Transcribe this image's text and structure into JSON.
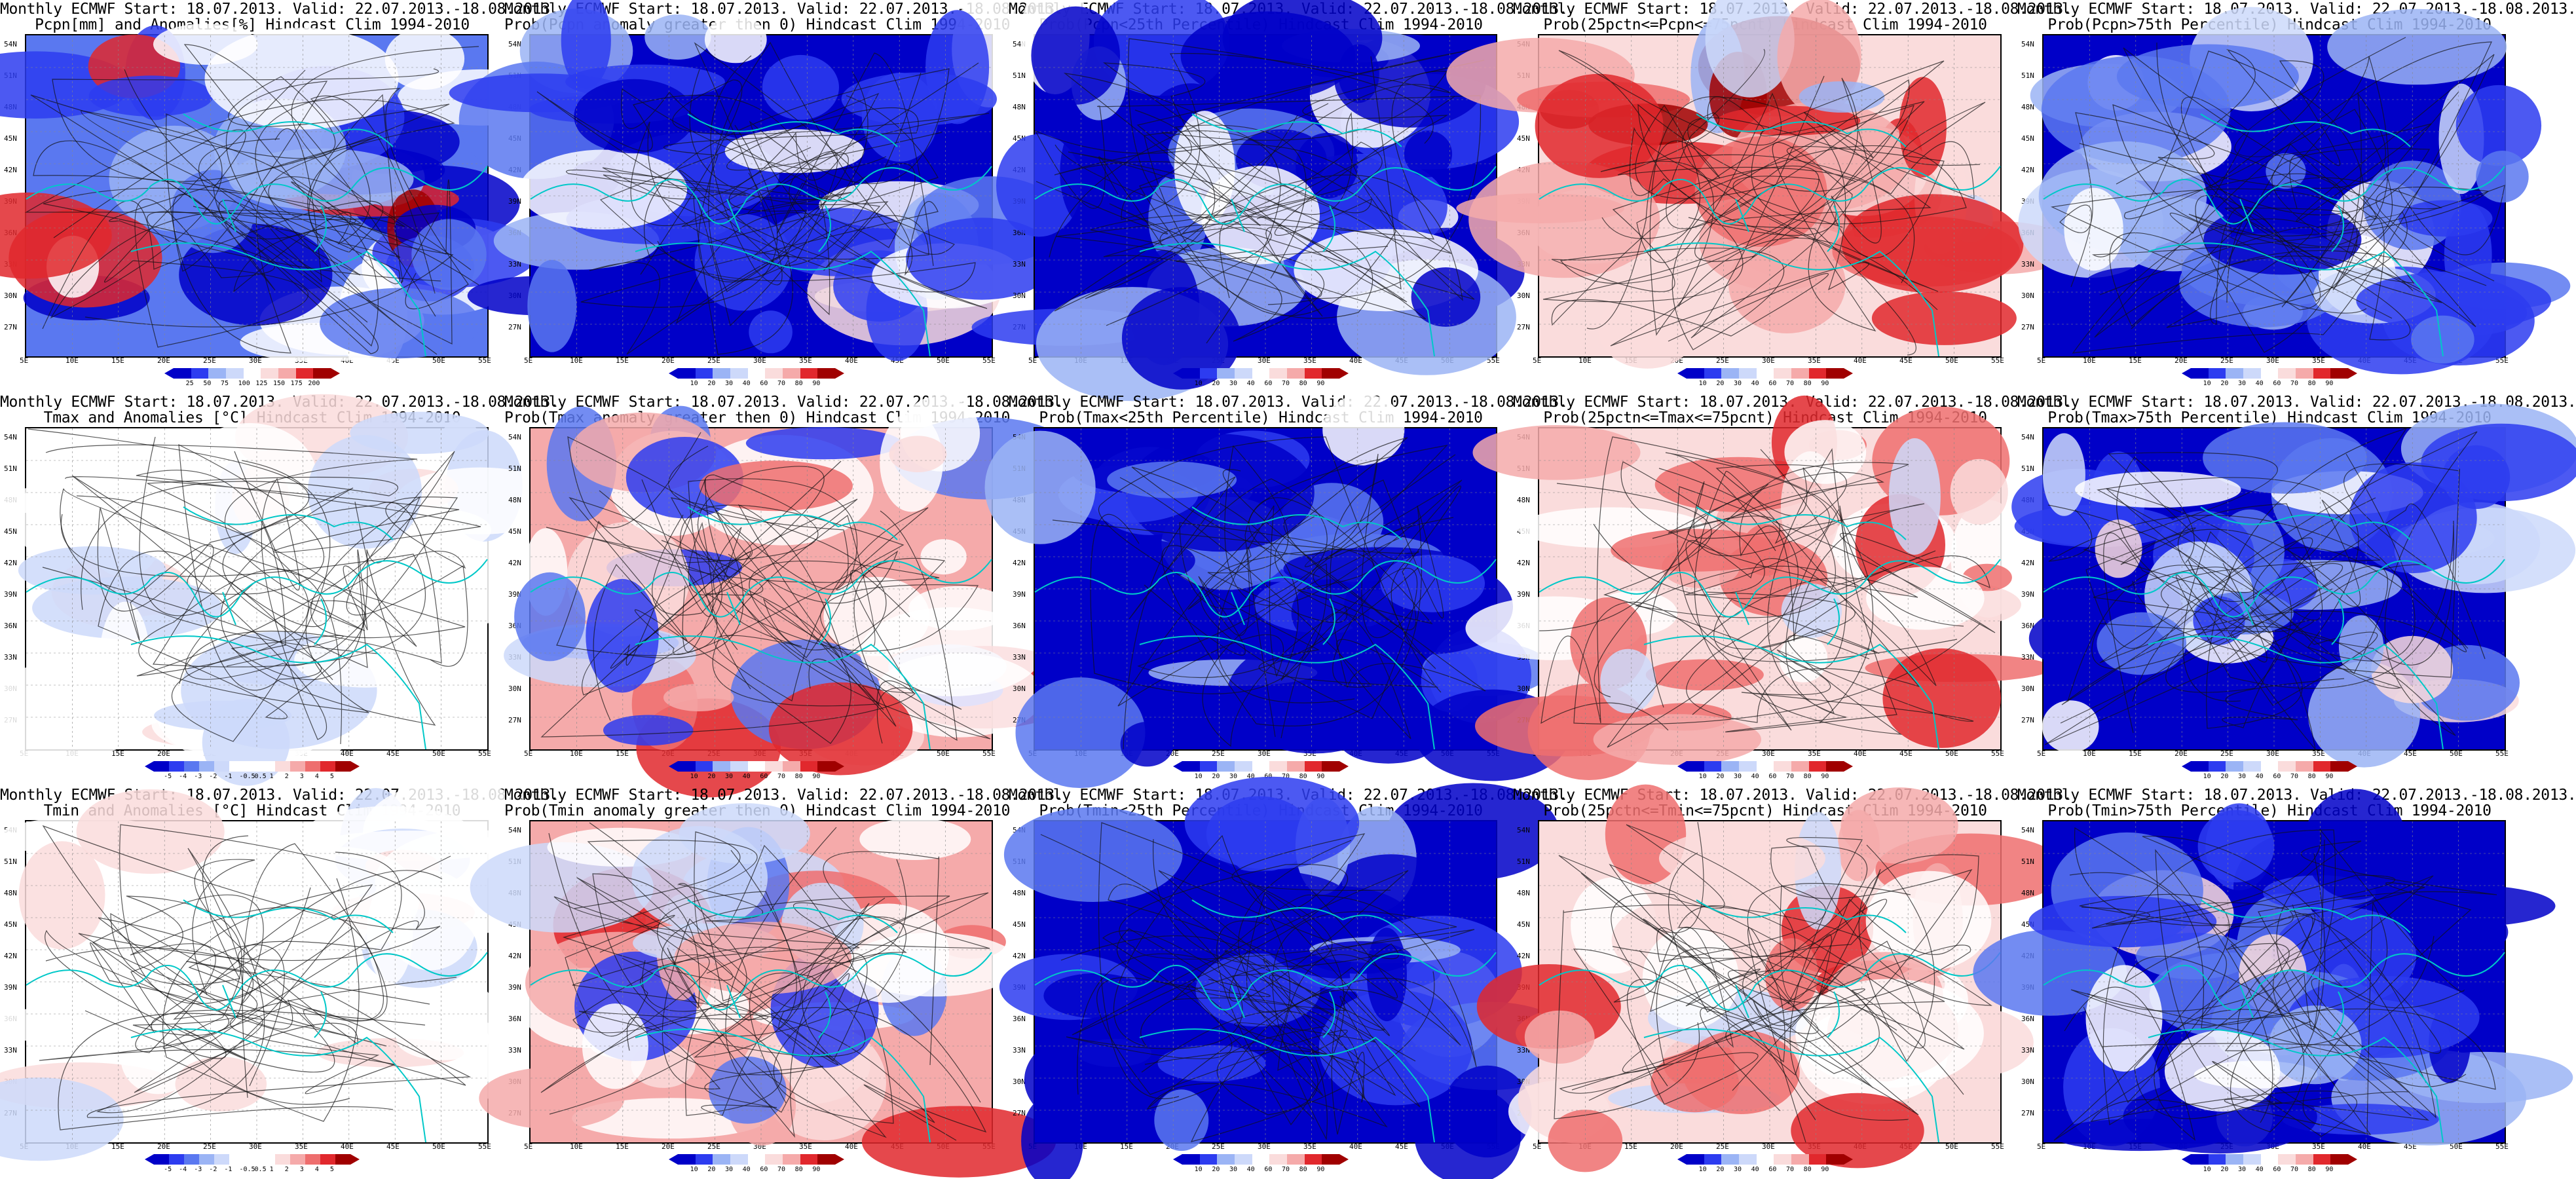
{
  "lat_labels": [
    "54N",
    "51N",
    "48N",
    "45N",
    "42N",
    "39N",
    "36N",
    "33N",
    "30N",
    "27N"
  ],
  "lon_labels": [
    "5E",
    "10E",
    "15E",
    "20E",
    "25E",
    "30E",
    "35E",
    "40E",
    "45E",
    "50E",
    "55E"
  ],
  "colors": {
    "blue_dark": "#0000c8",
    "blue": "#2d3cf0",
    "blue_mid": "#5a78f0",
    "blue_light": "#9bb4f5",
    "blue_pale": "#cdd9fa",
    "white": "#ffffff",
    "red_pale": "#fadcdc",
    "red_light": "#f5aaaa",
    "red_mid": "#ee6e6e",
    "red": "#e1282d",
    "red_dark": "#a00000",
    "contour": "#111111",
    "coast": "#00c8c8"
  },
  "panels": [
    {
      "title1": "Monthly ECMWF Start: 18.07.2013. Valid: 22.07.2013.-18.08.2013.",
      "title2": "Pcpn[mm] and Anomalies[%] Hindcast Clim 1994-2010",
      "cbar_labels": [
        "25",
        "50",
        "75",
        "100",
        "125",
        "150",
        "175",
        "200"
      ],
      "tone": "precip"
    },
    {
      "title1": "Monthly ECMWF Start: 18.07.2013. Valid: 22.07.2013.-18.08.2013.",
      "title2": "Prob(Pcpn anomaly greater then 0) Hindcast Clim 1994-2010",
      "cbar_labels": [
        "10",
        "20",
        "30",
        "40",
        "60",
        "70",
        "80",
        "90"
      ],
      "tone": "blue"
    },
    {
      "title1": "Monthly ECMWF Start: 18.07.2013. Valid: 22.07.2013.-18.08.2013.",
      "title2": "Prob(Pcpn<25th Percentile) Hindcast Clim 1994-2010",
      "cbar_labels": [
        "10",
        "20",
        "30",
        "40",
        "60",
        "70",
        "80",
        "90"
      ],
      "tone": "deepblue"
    },
    {
      "title1": "Monthly ECMWF Start: 18.07.2013. Valid: 22.07.2013.-18.08.2013.",
      "title2": "Prob(25pctn<=Pcpn<=75pcnt) Hindcast Clim 1994-2010",
      "cbar_labels": [
        "10",
        "20",
        "30",
        "40",
        "60",
        "70",
        "80",
        "90"
      ],
      "tone": "redsouth"
    },
    {
      "title1": "Monthly ECMWF Start: 18.07.2013. Valid: 22.07.2013.-18.08.2013.",
      "title2": "Prob(Pcpn>75th Percentile) Hindcast Clim 1994-2010",
      "cbar_labels": [
        "10",
        "20",
        "30",
        "40",
        "60",
        "70",
        "80",
        "90"
      ],
      "tone": "blue"
    },
    {
      "title1": "Monthly ECMWF Start: 18.07.2013. Valid: 22.07.2013.-18.08.2013.",
      "title2": "Tmax and Anomalies [°C] Hindcast Clim 1994-2010",
      "cbar_labels": [
        "-5",
        "-4",
        "-3",
        "-2",
        "-1",
        "-0.5",
        "0.5",
        "1",
        "2",
        "3",
        "4",
        "5"
      ],
      "tone": "anom"
    },
    {
      "title1": "Monthly ECMWF Start: 18.07.2013. Valid: 22.07.2013.-18.08.2013.",
      "title2": "Prob(Tmax anomaly greater then 0) Hindcast Clim 1994-2010",
      "cbar_labels": [
        "10",
        "20",
        "30",
        "40",
        "60",
        "70",
        "80",
        "90"
      ],
      "tone": "mixed"
    },
    {
      "title1": "Monthly ECMWF Start: 18.07.2013. Valid: 22.07.2013.-18.08.2013.",
      "title2": "Prob(Tmax<25th Percentile) Hindcast Clim 1994-2010",
      "cbar_labels": [
        "10",
        "20",
        "30",
        "40",
        "60",
        "70",
        "80",
        "90"
      ],
      "tone": "deepblue"
    },
    {
      "title1": "Monthly ECMWF Start: 18.07.2013. Valid: 22.07.2013.-18.08.2013.",
      "title2": "Prob(25pctn<=Tmax<=75pcnt) Hindcast Clim 1994-2010",
      "cbar_labels": [
        "10",
        "20",
        "30",
        "40",
        "60",
        "70",
        "80",
        "90"
      ],
      "tone": "red"
    },
    {
      "title1": "Monthly ECMWF Start: 18.07.2013. Valid: 22.07.2013.-18.08.2013.",
      "title2": "Prob(Tmax>75th Percentile) Hindcast Clim 1994-2010",
      "cbar_labels": [
        "10",
        "20",
        "30",
        "40",
        "60",
        "70",
        "80",
        "90"
      ],
      "tone": "blue"
    },
    {
      "title1": "Monthly ECMWF Start: 18.07.2013. Valid: 22.07.2013.-18.08.2013.",
      "title2": "Tmin and Anomalies [°C] Hindcast Clim 1994-2010",
      "cbar_labels": [
        "-5",
        "-4",
        "-3",
        "-2",
        "-1",
        "-0.5",
        "0.5",
        "1",
        "2",
        "3",
        "4",
        "5"
      ],
      "tone": "anom"
    },
    {
      "title1": "Monthly ECMWF Start: 18.07.2013. Valid: 22.07.2013.-18.08.2013.",
      "title2": "Prob(Tmin anomaly greater then 0) Hindcast Clim 1994-2010",
      "cbar_labels": [
        "10",
        "20",
        "30",
        "40",
        "60",
        "70",
        "80",
        "90"
      ],
      "tone": "mixed"
    },
    {
      "title1": "Monthly ECMWF Start: 18.07.2013. Valid: 22.07.2013.-18.08.2013.",
      "title2": "Prob(Tmin<25th Percentile) Hindcast Clim 1994-2010",
      "cbar_labels": [
        "10",
        "20",
        "30",
        "40",
        "60",
        "70",
        "80",
        "90"
      ],
      "tone": "deepblue"
    },
    {
      "title1": "Monthly ECMWF Start: 18.07.2013. Valid: 22.07.2013.-18.08.2013.",
      "title2": "Prob(25pctn<=Tmin<=75pcnt) Hindcast Clim 1994-2010",
      "cbar_labels": [
        "10",
        "20",
        "30",
        "40",
        "60",
        "70",
        "80",
        "90"
      ],
      "tone": "red"
    },
    {
      "title1": "Monthly ECMWF Start: 18.07.2013. Valid: 22.07.2013.-18.08.2013.",
      "title2": "Prob(Tmin>75th Percentile) Hindcast Clim 1994-2010",
      "cbar_labels": [
        "10",
        "20",
        "30",
        "40",
        "60",
        "70",
        "80",
        "90"
      ],
      "tone": "blue"
    }
  ]
}
